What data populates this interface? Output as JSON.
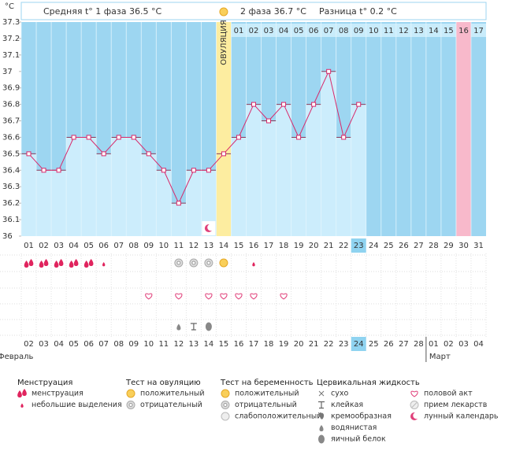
{
  "chart_data": {
    "type": "line",
    "y_unit": "°C",
    "header": [
      "Средняя t° 1 фаза 36.5 °C",
      "2 фаза 36.7 °C",
      "Разница t° 0.2 °C"
    ],
    "ovulation_label": "ОВУЛЯЦИЯ",
    "categories": [
      "01",
      "02",
      "03",
      "04",
      "05",
      "06",
      "07",
      "08",
      "09",
      "10",
      "11",
      "12",
      "13",
      "14",
      "15",
      "16",
      "17",
      "18",
      "19",
      "20",
      "21",
      "22",
      "23",
      "24",
      "25",
      "26",
      "27",
      "28",
      "29",
      "30",
      "31"
    ],
    "post_ovulation_days": [
      "01",
      "02",
      "03",
      "04",
      "05",
      "06",
      "07",
      "08",
      "09",
      "10",
      "11",
      "12",
      "13",
      "14",
      "15",
      "16",
      "17"
    ],
    "values": [
      36.5,
      36.4,
      36.4,
      36.6,
      36.6,
      36.5,
      36.6,
      36.6,
      36.5,
      36.4,
      36.2,
      36.4,
      36.4,
      36.5,
      36.6,
      36.8,
      36.7,
      36.8,
      36.6,
      36.8,
      37.0,
      36.6,
      36.8,
      null,
      null,
      null,
      null,
      null,
      null,
      null,
      null
    ],
    "color": "#d8286a",
    "ylim": [
      36,
      37.3
    ],
    "yticks": [
      36,
      36.1,
      36.2,
      36.3,
      36.4,
      36.5,
      36.6,
      36.7,
      36.8,
      36.9,
      37,
      37.1,
      37.2,
      37.3
    ],
    "marked_days": {
      "ovulation": 14,
      "expected_period": 30
    },
    "dates": [
      "02",
      "03",
      "04",
      "05",
      "06",
      "07",
      "08",
      "09",
      "10",
      "11",
      "12",
      "13",
      "14",
      "15",
      "16",
      "17",
      "18",
      "19",
      "20",
      "21",
      "22",
      "23",
      "24",
      "25",
      "26",
      "27",
      "28",
      "01",
      "02",
      "03",
      "04"
    ],
    "weekend_indices": [
      0,
      6,
      7,
      13,
      14,
      20,
      21,
      27,
      28
    ],
    "weekend_color": "#d8286a",
    "months": [
      {
        "name": "Февраль",
        "start": 0
      },
      {
        "name": "Март",
        "start": 27
      }
    ],
    "markers": {
      "menstruation": {
        "heavy": [
          1,
          2,
          3,
          4,
          5
        ],
        "light": [
          6,
          16
        ]
      },
      "ovulation_test": {
        "negative": [
          11,
          12,
          13
        ],
        "positive": [
          14
        ]
      },
      "intercourse": [
        9,
        11,
        13,
        14,
        15,
        16,
        18
      ],
      "cervical": {
        "watery": [
          11
        ],
        "sticky": [
          12
        ],
        "egg_white": [
          13
        ]
      },
      "lunar": [
        13
      ]
    },
    "legend": [
      {
        "title": "Менструация",
        "items": [
          "менструация",
          "небольшие выделения"
        ]
      },
      {
        "title": "Тест на овуляцию",
        "items": [
          "положительный",
          "отрицательный"
        ]
      },
      {
        "title": "Тест на беременность",
        "items": [
          "положительный",
          "отрицательный",
          "слабоположительный"
        ]
      },
      {
        "title": "Цервикальная жидкость",
        "items": [
          "сухо",
          "клейкая",
          "кремообразная",
          "водянистая",
          "яичный белок"
        ]
      },
      {
        "items": [
          "половой акт",
          "прием лекарств",
          "лунный календарь"
        ]
      }
    ]
  }
}
